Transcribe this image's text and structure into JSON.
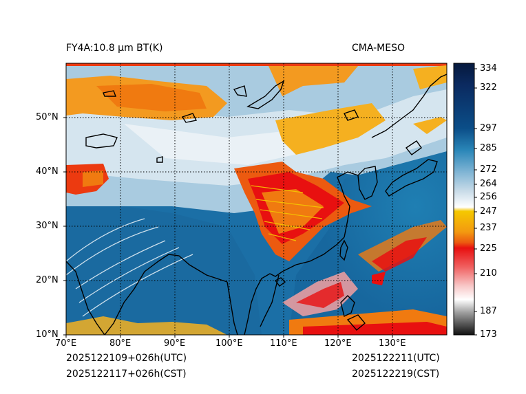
{
  "header": {
    "left_title": "FY4A:10.8 µm BT(K)",
    "right_title": "CMA-MESO"
  },
  "footer": {
    "init_utc": "2025122109+026h(UTC)",
    "init_cst": "2025122117+026h(CST)",
    "valid_utc": "2025122211(UTC)",
    "valid_cst": "2025122219(CST)"
  },
  "map": {
    "lon_labels": [
      "70°E",
      "80°E",
      "90°E",
      "100°E",
      "110°E",
      "120°E",
      "130°E"
    ],
    "lat_labels": [
      "50°N",
      "40°N",
      "30°N",
      "20°N",
      "10°N"
    ],
    "lon_range": [
      70,
      140
    ],
    "lat_range": [
      10,
      60
    ]
  },
  "colorbar": {
    "unit": "K",
    "ticks": [
      "334",
      "322",
      "297",
      "285",
      "272",
      "264",
      "256",
      "247",
      "237",
      "225",
      "210",
      "187",
      "173"
    ],
    "colors": {
      "cold_white": "#ffffff",
      "yellow": "#f5b800",
      "orange": "#f07a10",
      "red": "#e81010",
      "pink": "#f4a0a0",
      "gray": "#9a9a9a",
      "black": "#111111",
      "light_blue": "#c8dbe8",
      "mid_blue": "#2a86b8",
      "deep_blue": "#0b4e88",
      "navy": "#06193d"
    }
  }
}
